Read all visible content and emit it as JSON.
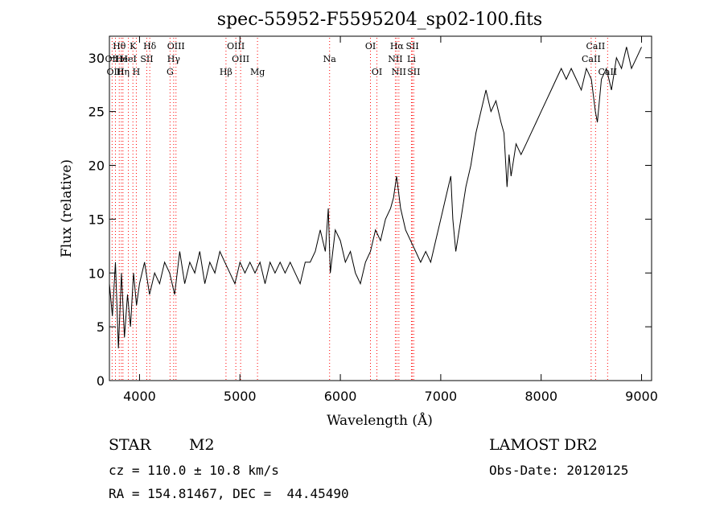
{
  "chart_data": {
    "type": "line",
    "title": "spec-55952-F5595204_sp02-100.fits",
    "xlabel": "Wavelength (Å)",
    "ylabel": "Flux (relative)",
    "xlim": [
      3700,
      9100
    ],
    "ylim": [
      0,
      32
    ],
    "xticks": [
      4000,
      5000,
      6000,
      7000,
      8000,
      9000
    ],
    "yticks": [
      0,
      5,
      10,
      15,
      20,
      25,
      30
    ],
    "series": [
      {
        "color": "#000000",
        "x": [
          3700,
          3730,
          3760,
          3790,
          3820,
          3850,
          3880,
          3910,
          3940,
          3970,
          4000,
          4050,
          4100,
          4150,
          4200,
          4250,
          4300,
          4350,
          4400,
          4450,
          4500,
          4550,
          4600,
          4650,
          4700,
          4750,
          4800,
          4850,
          4900,
          4950,
          5000,
          5050,
          5100,
          5150,
          5200,
          5250,
          5300,
          5350,
          5400,
          5450,
          5500,
          5550,
          5600,
          5650,
          5700,
          5750,
          5800,
          5850,
          5880,
          5900,
          5950,
          6000,
          6050,
          6100,
          6150,
          6200,
          6250,
          6300,
          6350,
          6400,
          6450,
          6500,
          6530,
          6560,
          6600,
          6650,
          6700,
          6750,
          6800,
          6850,
          6900,
          6950,
          7000,
          7050,
          7100,
          7120,
          7150,
          7200,
          7250,
          7300,
          7350,
          7400,
          7450,
          7500,
          7550,
          7600,
          7630,
          7660,
          7680,
          7700,
          7750,
          7800,
          7850,
          7900,
          7950,
          8000,
          8050,
          8100,
          8150,
          8200,
          8250,
          8300,
          8350,
          8400,
          8450,
          8500,
          8540,
          8560,
          8600,
          8650,
          8700,
          8750,
          8800,
          8850,
          8900,
          8950,
          9000
        ],
        "y": [
          9,
          6,
          11,
          3,
          10,
          4,
          8,
          5,
          10,
          7,
          9,
          11,
          8,
          10,
          9,
          11,
          10,
          8,
          12,
          9,
          11,
          10,
          12,
          9,
          11,
          10,
          12,
          11,
          10,
          9,
          11,
          10,
          11,
          10,
          11,
          9,
          11,
          10,
          11,
          10,
          11,
          10,
          9,
          11,
          11,
          12,
          14,
          12,
          16,
          10,
          14,
          13,
          11,
          12,
          10,
          9,
          11,
          12,
          14,
          13,
          15,
          16,
          17,
          19,
          16,
          14,
          13,
          12,
          11,
          12,
          11,
          13,
          15,
          17,
          19,
          15,
          12,
          15,
          18,
          20,
          23,
          25,
          27,
          25,
          26,
          24,
          23,
          18,
          21,
          19,
          22,
          21,
          22,
          23,
          24,
          25,
          26,
          27,
          28,
          29,
          28,
          29,
          28,
          27,
          29,
          28,
          25,
          24,
          28,
          29,
          27,
          30,
          29,
          31,
          29,
          30,
          31
        ]
      }
    ],
    "spectral_lines": [
      {
        "label": "Hθ",
        "x": 3798,
        "row": 0
      },
      {
        "label": "K",
        "x": 3934,
        "row": 0
      },
      {
        "label": "Hδ",
        "x": 4102,
        "row": 0
      },
      {
        "label": "OIII",
        "x": 4363,
        "row": 0
      },
      {
        "label": "OIII",
        "x": 4959,
        "row": 0
      },
      {
        "label": "OI",
        "x": 6300,
        "row": 0
      },
      {
        "label": "Hα",
        "x": 6563,
        "row": 0
      },
      {
        "label": "SII",
        "x": 6717,
        "row": 0
      },
      {
        "label": "CaII",
        "x": 8542,
        "row": 0
      },
      {
        "label": "OII",
        "x": 3727,
        "row": 1
      },
      {
        "label": "He",
        "x": 3819,
        "row": 1
      },
      {
        "label": "HeI",
        "x": 3889,
        "row": 1
      },
      {
        "label": "SII",
        "x": 4072,
        "row": 1
      },
      {
        "label": "Hγ",
        "x": 4340,
        "row": 1
      },
      {
        "label": "OIII",
        "x": 5007,
        "row": 1
      },
      {
        "label": "Na",
        "x": 5893,
        "row": 1
      },
      {
        "label": "NII",
        "x": 6548,
        "row": 1
      },
      {
        "label": "Li",
        "x": 6708,
        "row": 1
      },
      {
        "label": "CaII",
        "x": 8498,
        "row": 1
      },
      {
        "label": "OIII",
        "x": 3760,
        "row": 2
      },
      {
        "label": "Hη",
        "x": 3835,
        "row": 2
      },
      {
        "label": "H",
        "x": 3968,
        "row": 2
      },
      {
        "label": "G",
        "x": 4304,
        "row": 2
      },
      {
        "label": "Hβ",
        "x": 4861,
        "row": 2
      },
      {
        "label": "Mg",
        "x": 5175,
        "row": 2
      },
      {
        "label": "OI",
        "x": 6364,
        "row": 2
      },
      {
        "label": "NII",
        "x": 6583,
        "row": 2
      },
      {
        "label": "SII",
        "x": 6731,
        "row": 2
      },
      {
        "label": "CaII",
        "x": 8662,
        "row": 2
      }
    ],
    "line_color": "#ff0000"
  },
  "info": {
    "object_type": "STAR",
    "subclass": "M2",
    "survey": "LAMOST DR2",
    "cz": "cz = 110.0 ± 10.8 km/s",
    "obs_date": "Obs-Date: 20120125",
    "radec": "RA = 154.81467, DEC =  44.45490"
  }
}
